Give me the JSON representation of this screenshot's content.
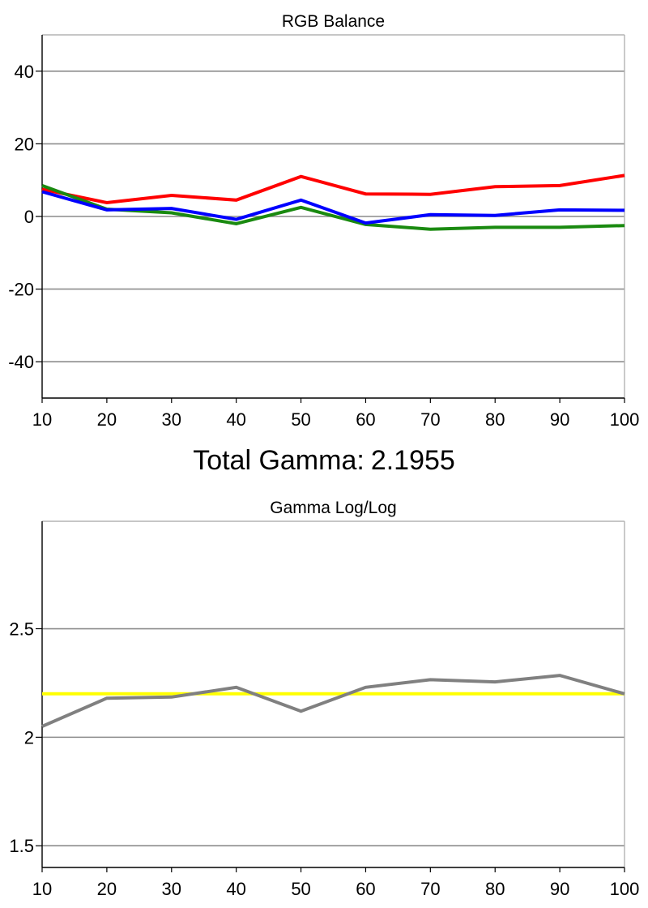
{
  "total_gamma": {
    "label": "Total Gamma:",
    "value": "2.1955"
  },
  "chart_data": [
    {
      "type": "line",
      "title": "RGB Balance",
      "xlabel": "",
      "ylabel": "",
      "x": [
        10,
        20,
        30,
        40,
        50,
        60,
        70,
        80,
        90,
        100
      ],
      "xlim": [
        10,
        100
      ],
      "ylim": [
        -50,
        50
      ],
      "xticks": [
        "10",
        "20",
        "30",
        "40",
        "50",
        "60",
        "70",
        "80",
        "90",
        "100"
      ],
      "yticks": [
        {
          "value": 40,
          "label": "40"
        },
        {
          "value": 20,
          "label": "20"
        },
        {
          "value": 0,
          "label": "0"
        },
        {
          "value": -20,
          "label": "-20"
        },
        {
          "value": -40,
          "label": "-40"
        }
      ],
      "grid": true,
      "series": [
        {
          "key": "red",
          "color": "#ff0000",
          "values": [
            7.5,
            3.8,
            5.8,
            4.5,
            11.0,
            6.2,
            6.1,
            8.2,
            8.5,
            11.3
          ]
        },
        {
          "key": "green",
          "color": "#1a8a10",
          "values": [
            8.5,
            2.0,
            1.0,
            -2.0,
            2.5,
            -2.2,
            -3.5,
            -3.0,
            -3.0,
            -2.5
          ]
        },
        {
          "key": "blue",
          "color": "#0000ff",
          "values": [
            6.8,
            1.8,
            2.2,
            -0.8,
            4.5,
            -1.8,
            0.5,
            0.3,
            1.8,
            1.7
          ]
        }
      ]
    },
    {
      "type": "line",
      "title": "Gamma Log/Log",
      "xlabel": "",
      "ylabel": "",
      "x": [
        10,
        20,
        30,
        40,
        50,
        60,
        70,
        80,
        90,
        100
      ],
      "xlim": [
        10,
        100
      ],
      "ylim": [
        1.4,
        2.995
      ],
      "xticks": [
        "10",
        "20",
        "30",
        "40",
        "50",
        "60",
        "70",
        "80",
        "90",
        "100"
      ],
      "yticks": [
        {
          "value": 2.5,
          "label": "2.5"
        },
        {
          "value": 2.0,
          "label": "2"
        },
        {
          "value": 1.5,
          "label": "1.5"
        }
      ],
      "grid": true,
      "series": [
        {
          "key": "target",
          "color": "#ffff00",
          "values": [
            2.2,
            2.2,
            2.2,
            2.2,
            2.2,
            2.2,
            2.2,
            2.2,
            2.2,
            2.2
          ]
        },
        {
          "key": "measured",
          "color": "#808080",
          "values": [
            2.05,
            2.18,
            2.185,
            2.23,
            2.12,
            2.23,
            2.265,
            2.255,
            2.285,
            2.2
          ]
        }
      ]
    }
  ]
}
